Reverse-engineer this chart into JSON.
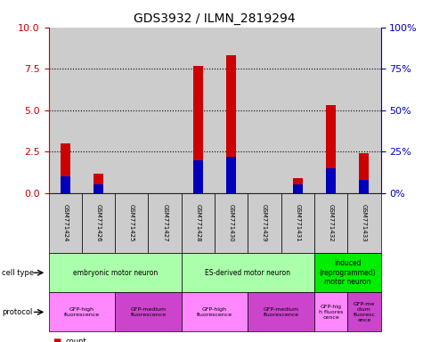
{
  "title": "GDS3932 / ILMN_2819294",
  "samples": [
    "GSM771424",
    "GSM771426",
    "GSM771425",
    "GSM771427",
    "GSM771428",
    "GSM771430",
    "GSM771429",
    "GSM771431",
    "GSM771432",
    "GSM771433"
  ],
  "count_values": [
    3.0,
    1.2,
    0.0,
    0.0,
    7.7,
    8.3,
    0.0,
    0.9,
    5.3,
    2.4
  ],
  "percentile_values": [
    10.0,
    5.5,
    0.0,
    0.0,
    20.0,
    22.0,
    0.0,
    5.5,
    15.0,
    8.0
  ],
  "ylim_left": [
    0,
    10
  ],
  "ylim_right": [
    0,
    100
  ],
  "yticks_left": [
    0,
    2.5,
    5.0,
    7.5,
    10
  ],
  "yticks_right": [
    0,
    25,
    50,
    75,
    100
  ],
  "bar_color_count": "#cc0000",
  "bar_color_pct": "#0000bb",
  "bar_width": 0.3,
  "cell_type_groups": [
    {
      "label": "embryonic motor neuron",
      "start": 0,
      "end": 4,
      "color": "#aaffaa"
    },
    {
      "label": "ES-derived motor neuron",
      "start": 4,
      "end": 8,
      "color": "#aaffaa"
    },
    {
      "label": "induced\n(reprogrammed)\nmotor neuron",
      "start": 8,
      "end": 10,
      "color": "#00ee00"
    }
  ],
  "protocol_groups": [
    {
      "label": "GFP-high\nfluorescence",
      "start": 0,
      "end": 2,
      "color": "#ff88ff"
    },
    {
      "label": "GFP-medium\nfluorescence",
      "start": 2,
      "end": 4,
      "color": "#cc44cc"
    },
    {
      "label": "GFP-high\nfluorescence",
      "start": 4,
      "end": 6,
      "color": "#ff88ff"
    },
    {
      "label": "GFP-medium\nfluorescence",
      "start": 6,
      "end": 8,
      "color": "#cc44cc"
    },
    {
      "label": "GFP-hig\nh fluores\ncence",
      "start": 8,
      "end": 9,
      "color": "#ff88ff"
    },
    {
      "label": "GFP-me\ndium\nfluoresc\nence",
      "start": 9,
      "end": 10,
      "color": "#cc44cc"
    }
  ],
  "grid_yticks": [
    2.5,
    5.0,
    7.5
  ],
  "left_axis_color": "#cc0000",
  "right_axis_color": "#0000bb",
  "sample_bg_color": "#cccccc"
}
